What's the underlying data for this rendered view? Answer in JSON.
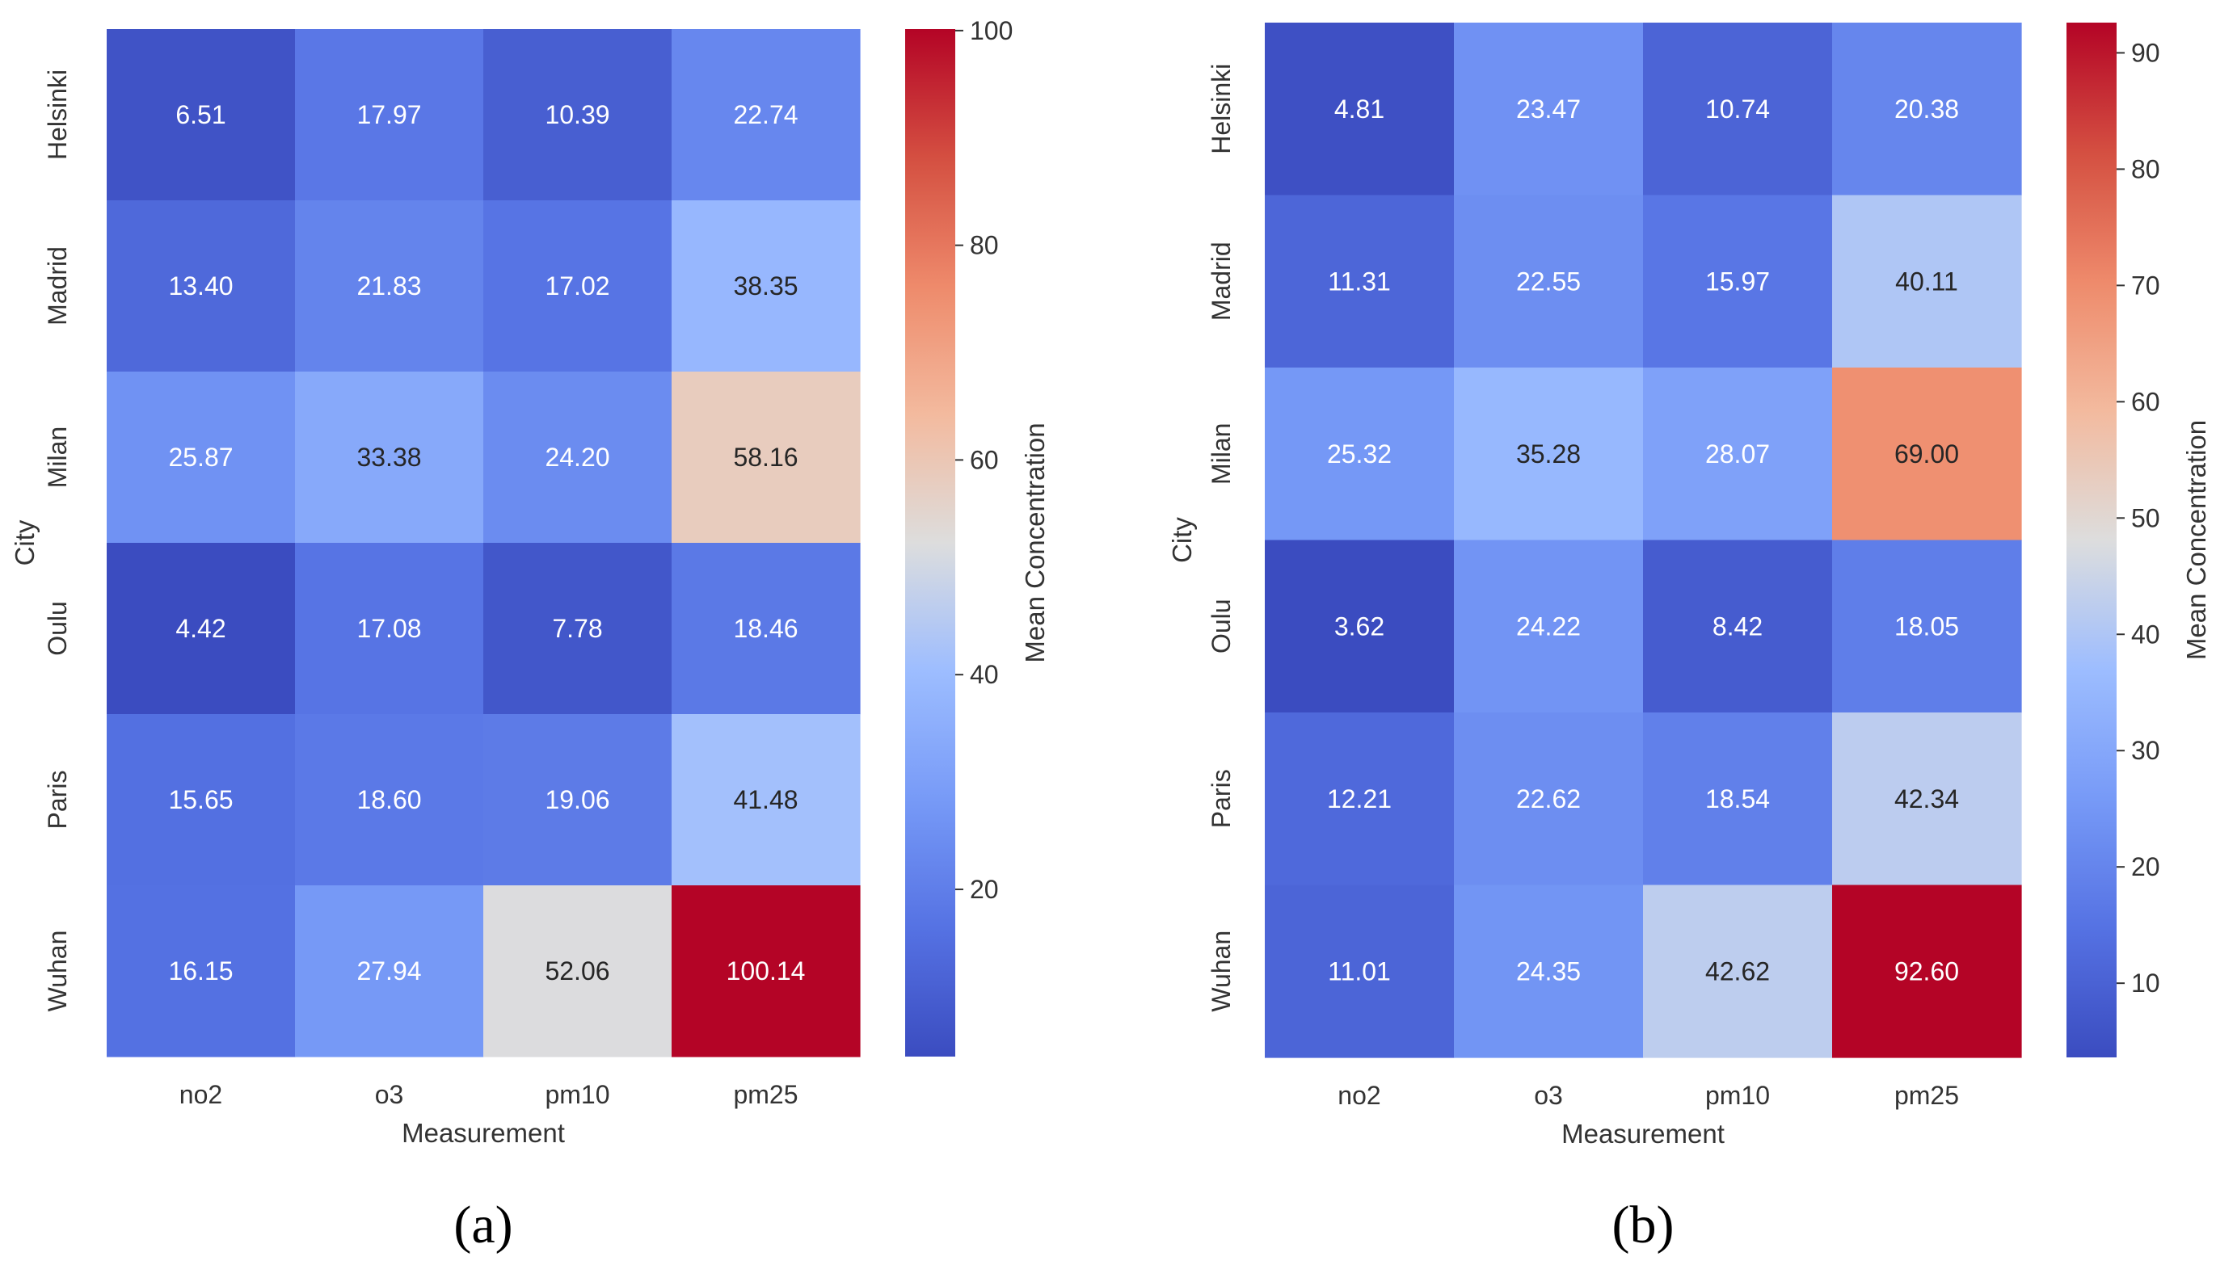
{
  "chart_data": [
    {
      "type": "heatmap",
      "panel_label": "(a)",
      "xlabel": "Measurement",
      "ylabel": "City",
      "x_categories": [
        "no2",
        "o3",
        "pm10",
        "pm25"
      ],
      "y_categories": [
        "Helsinki",
        "Madrid",
        "Milan",
        "Oulu",
        "Paris",
        "Wuhan"
      ],
      "values": [
        [
          6.51,
          17.97,
          10.39,
          22.74
        ],
        [
          13.4,
          21.83,
          17.02,
          38.35
        ],
        [
          25.87,
          33.38,
          24.2,
          58.16
        ],
        [
          4.42,
          17.08,
          7.78,
          18.46
        ],
        [
          15.65,
          18.6,
          19.06,
          41.48
        ],
        [
          16.15,
          27.94,
          52.06,
          100.14
        ]
      ],
      "colorbar": {
        "label": "Mean Concentration",
        "range": [
          4.42,
          100.14
        ],
        "ticks": [
          20,
          40,
          60,
          80,
          100
        ],
        "colormap": "coolwarm"
      }
    },
    {
      "type": "heatmap",
      "panel_label": "(b)",
      "xlabel": "Measurement",
      "ylabel": "City",
      "x_categories": [
        "no2",
        "o3",
        "pm10",
        "pm25"
      ],
      "y_categories": [
        "Helsinki",
        "Madrid",
        "Milan",
        "Oulu",
        "Paris",
        "Wuhan"
      ],
      "values": [
        [
          4.81,
          23.47,
          10.74,
          20.38
        ],
        [
          11.31,
          22.55,
          15.97,
          40.11
        ],
        [
          25.32,
          35.28,
          28.07,
          69.0
        ],
        [
          3.62,
          24.22,
          8.42,
          18.05
        ],
        [
          12.21,
          22.62,
          18.54,
          42.34
        ],
        [
          11.01,
          24.35,
          42.62,
          92.6
        ]
      ],
      "colorbar": {
        "label": "Mean Concentration",
        "range": [
          3.62,
          92.6
        ],
        "ticks": [
          10,
          20,
          30,
          40,
          50,
          60,
          70,
          80,
          90
        ],
        "colormap": "coolwarm"
      }
    }
  ]
}
